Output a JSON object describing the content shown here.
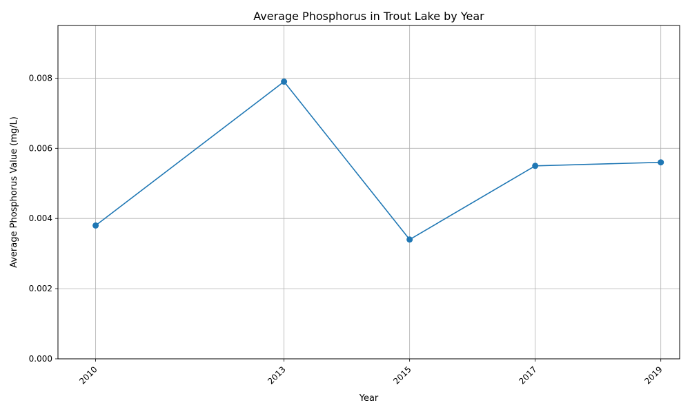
{
  "chart_data": {
    "type": "line",
    "title": "Average Phosphorus in Trout Lake by Year",
    "xlabel": "Year",
    "ylabel": "Average Phosphorus Value (mg/L)",
    "x": [
      2010,
      2013,
      2015,
      2017,
      2019
    ],
    "x_tick_labels": [
      "2010",
      "2013",
      "2015",
      "2017",
      "2019"
    ],
    "series": [
      {
        "values": [
          0.0038,
          0.0079,
          0.0034,
          0.0055,
          0.0056
        ],
        "color": "#1f77b4",
        "marker": "circle"
      }
    ],
    "xlim": [
      2009.4,
      2019.3
    ],
    "ylim": [
      0,
      0.0095
    ],
    "y_ticks": [
      0,
      0.002,
      0.004,
      0.006,
      0.008
    ],
    "y_tick_labels": [
      "0.000",
      "0.002",
      "0.004",
      "0.006",
      "0.008"
    ],
    "grid": true,
    "x_tick_rotation": "45 degrees",
    "legend": "none"
  }
}
